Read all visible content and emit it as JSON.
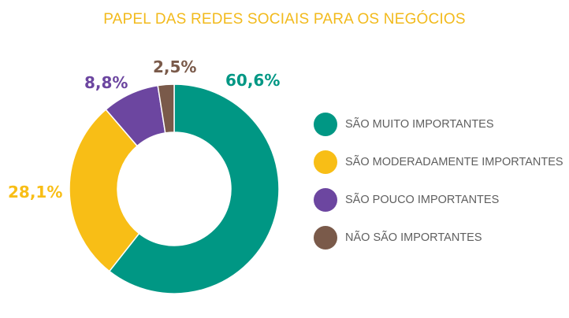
{
  "chart_data": {
    "type": "pie",
    "variant": "donut",
    "title": "PAPEL DAS REDES SOCIAIS PARA OS NEGÓCIOS",
    "categories": [
      "SÃO MUITO IMPORTANTES",
      "SÃO MODERADAMENTE IMPORTANTES",
      "SÃO POUCO IMPORTANTES",
      "NÃO SÃO IMPORTANTES"
    ],
    "values": [
      60.6,
      28.1,
      8.8,
      2.5
    ],
    "value_labels": [
      "60,6%",
      "28,1%",
      "8,8%",
      "2,5%"
    ],
    "colors": [
      "#009784",
      "#F8BE16",
      "#6C46A0",
      "#7A5A4A"
    ],
    "title_color": "#F2BA1C",
    "legend_position": "right",
    "start_angle": "top",
    "direction": "clockwise"
  }
}
